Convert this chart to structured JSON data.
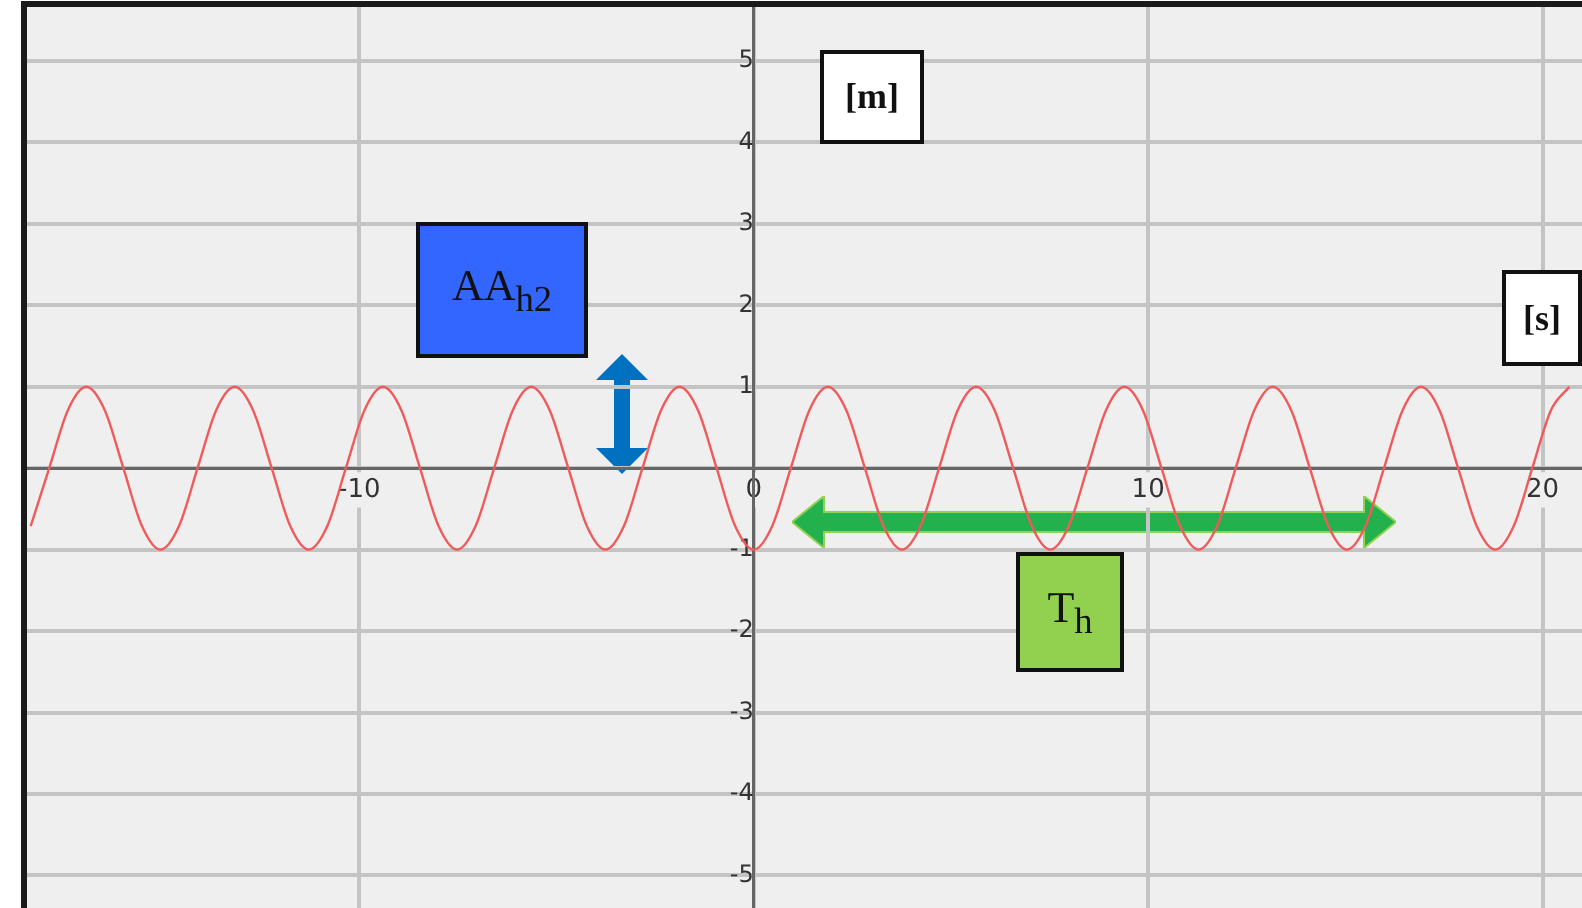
{
  "chart_data": {
    "type": "line",
    "annotations": [
      "[m]",
      "[s]",
      "AA$_{h2}$",
      "T$_{h}$"
    ],
    "series": [
      {
        "color": "#f05a5a",
        "x": [
          -18.33,
          -17.86,
          -17.39,
          -16.92,
          -16.45,
          -15.98,
          -15.51,
          -15.04,
          -14.57,
          -14.1,
          -13.63,
          -13.16,
          -12.69,
          -12.22,
          -11.75,
          -11.28,
          -10.81,
          -10.34,
          -9.87,
          -9.4,
          -8.93,
          -8.46,
          -7.99,
          -7.52,
          -7.05,
          -6.58,
          -6.11,
          -5.64,
          -5.17,
          -4.7,
          -4.23,
          -3.76,
          -3.29,
          -2.82,
          -2.35,
          -1.88,
          -1.41,
          -0.94,
          -0.47,
          0,
          0.47,
          0.94,
          1.41,
          1.88,
          2.35,
          2.82,
          3.29,
          3.76,
          4.23,
          4.7,
          5.17,
          5.64,
          6.11,
          6.58,
          7.05,
          7.52,
          7.99,
          8.46,
          8.93,
          9.4,
          9.87,
          10.34,
          10.81,
          11.28,
          11.75,
          12.22,
          12.69,
          13.16,
          13.63,
          14.1,
          14.57,
          15.04,
          15.51,
          15.98,
          16.45,
          16.92,
          17.39,
          17.86,
          18.33,
          18.8,
          19.27,
          19.74,
          20.21,
          20.68
        ],
        "values": [
          -0.71,
          0,
          0.71,
          1,
          0.71,
          0,
          -0.71,
          -1,
          -0.71,
          0,
          0.71,
          1,
          0.71,
          0,
          -0.71,
          -1,
          -0.71,
          0,
          0.71,
          1,
          0.71,
          0,
          -0.71,
          -1,
          -0.71,
          0,
          0.71,
          1,
          0.71,
          0,
          -0.71,
          -1,
          -0.71,
          0,
          0.71,
          1,
          0.71,
          0,
          -0.71,
          -1,
          -0.71,
          0,
          0.71,
          1,
          0.71,
          0,
          -0.71,
          -1,
          -0.71,
          0,
          0.71,
          1,
          0.71,
          0,
          -0.71,
          -1,
          -0.71,
          0,
          0.71,
          1,
          0.71,
          0,
          -0.71,
          -1,
          -0.71,
          0,
          0.71,
          1,
          0.71,
          0,
          -0.71,
          -1,
          -0.71,
          0,
          0.71,
          1,
          0.71,
          0,
          -0.71,
          -1,
          -0.71,
          0,
          0.71,
          1
        ]
      }
    ],
    "xlim": [
      -18.5,
      21
    ],
    "ylim": [
      -5.4,
      5.7
    ],
    "xticks": [
      -10,
      0,
      10,
      20
    ],
    "yticks": [
      -5,
      -4,
      -3,
      -2,
      -1,
      {
        "value": 0,
        "label": null
      },
      1,
      2,
      3,
      4,
      5
    ],
    "grid": true,
    "marker": "none",
    "line_style": "solid"
  }
}
